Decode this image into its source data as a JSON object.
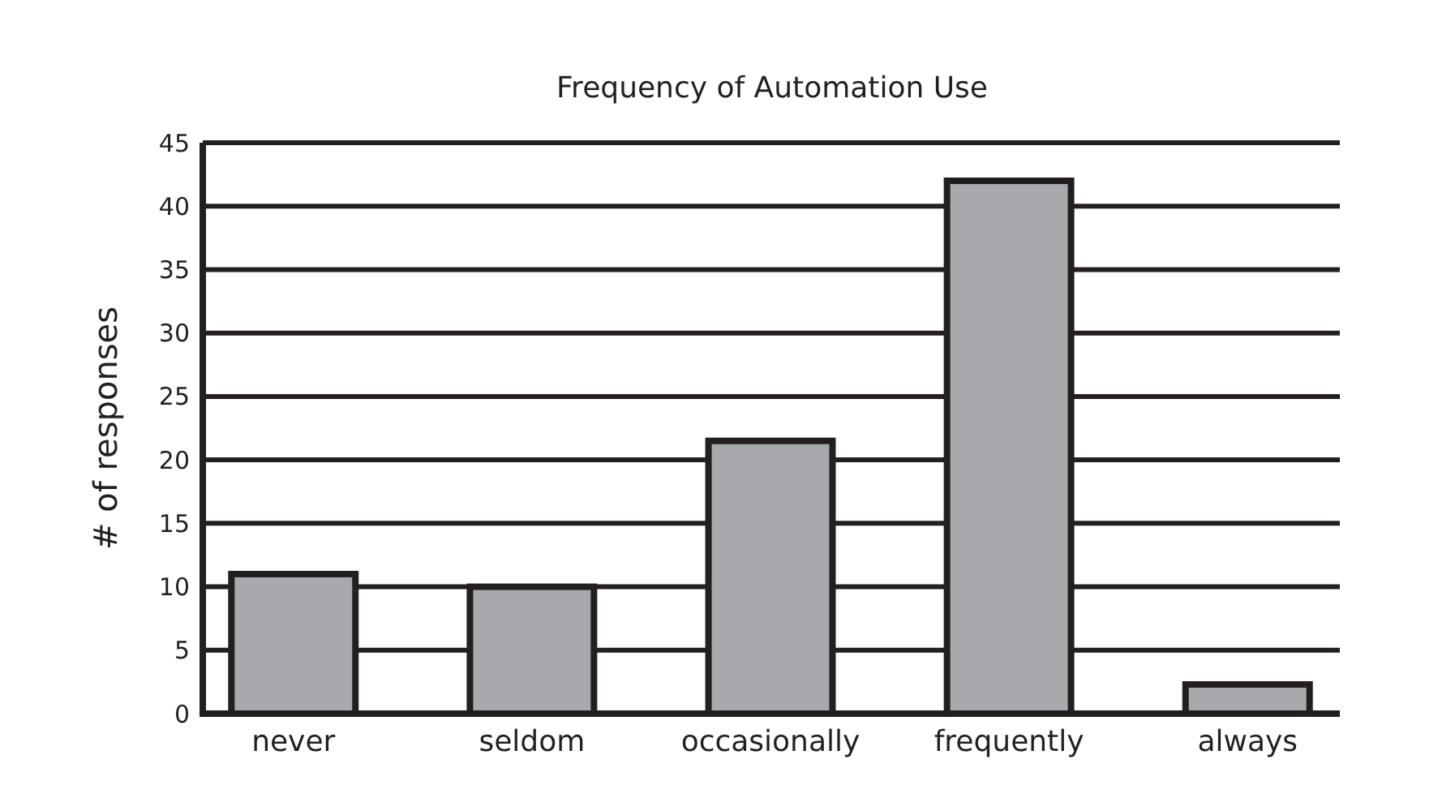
{
  "chart_data": {
    "type": "bar",
    "title": "Frequency of Automation Use",
    "ylabel": "# of responses",
    "categories": [
      "never",
      "seldom",
      "occasionally",
      "frequently",
      "always"
    ],
    "values": [
      11,
      10,
      21.5,
      42,
      2.3
    ],
    "color": "#a7a9ac",
    "ylim": [
      0,
      45
    ],
    "yticks": [
      0,
      5,
      10,
      15,
      20,
      25,
      30,
      35,
      40,
      45
    ],
    "grid": "y"
  }
}
